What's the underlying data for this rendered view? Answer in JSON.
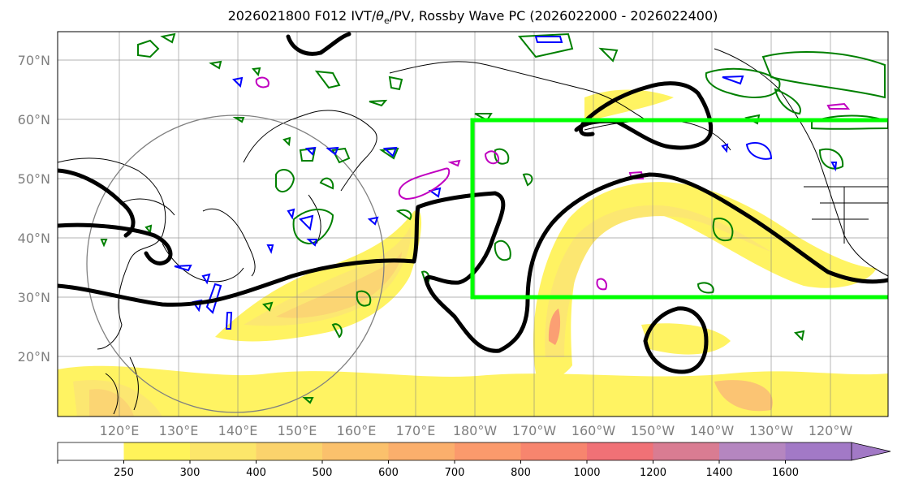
{
  "title": {
    "prefix": "2026021800 F012 IVT/",
    "theta": "θ",
    "theta_sub": "e",
    "suffix": "/PV, Rossby Wave PC (2026022000 - 2026022400)"
  },
  "lat_labels": [
    "70°N",
    "60°N",
    "50°N",
    "40°N",
    "30°N",
    "20°N"
  ],
  "lon_labels": [
    "120°E",
    "130°E",
    "140°E",
    "150°E",
    "160°E",
    "170°E",
    "180°W",
    "170°W",
    "160°W",
    "150°W",
    "140°W",
    "130°W",
    "120°W"
  ],
  "colorbar": {
    "levels": [
      "250",
      "300",
      "400",
      "500",
      "600",
      "700",
      "800",
      "1000",
      "1200",
      "1400",
      "1600"
    ],
    "colors": [
      "#ffffff",
      "#fff35a",
      "#fce66a",
      "#fbd36c",
      "#fbc16c",
      "#fbaf6c",
      "#fb9a6c",
      "#f7856e",
      "#f07176",
      "#d97c92",
      "#b586c0",
      "#a279c6"
    ]
  },
  "colors": {
    "contour_black": "#000000",
    "contour_green": "#008000",
    "contour_blue": "#0000ff",
    "contour_magenta": "#c000c0",
    "box": "#00ff00",
    "grid": "#808080",
    "coast": "#000000",
    "circle": "#808080"
  }
}
